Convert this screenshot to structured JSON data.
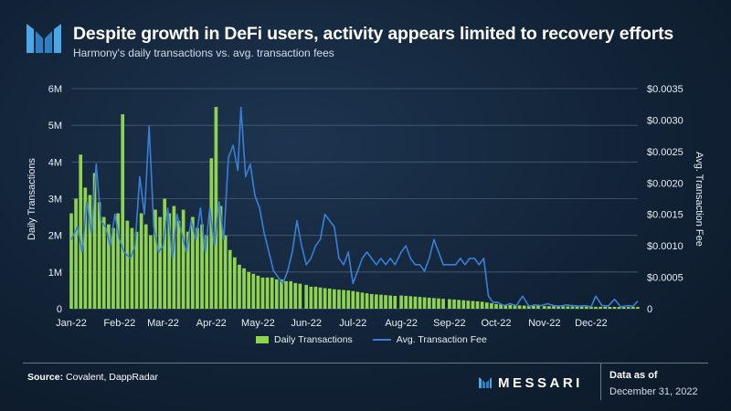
{
  "header": {
    "title": "Despite growth in DeFi users, activity appears limited to recovery efforts",
    "subtitle": "Harmony's daily transactions vs. avg. transaction fees"
  },
  "footer": {
    "source_label": "Source:",
    "source_text": "Covalent, DappRadar",
    "brand": "MESSARI",
    "data_as_of_label": "Data as of",
    "data_as_of_date": "December 31, 2022"
  },
  "colors": {
    "bars": "#8fd34f",
    "line": "#3a7fd6",
    "grid": "#4a5d72"
  },
  "chart_data": {
    "type": "bar",
    "title": "Despite growth in DeFi users, activity appears limited to recovery efforts",
    "subtitle": "Harmony's daily transactions vs. avg. transaction fees",
    "x_tick_labels": [
      "Jan-22",
      "Feb-22",
      "Mar-22",
      "Apr-22",
      "May-22",
      "Jun-22",
      "Jul-22",
      "Aug-22",
      "Sep-22",
      "Oct-22",
      "Nov-22",
      "Dec-22"
    ],
    "y_left": {
      "label": "Daily Transactions",
      "range": [
        0,
        6000000
      ],
      "tick_labels": [
        "0",
        "1M",
        "2M",
        "3M",
        "4M",
        "5M",
        "6M"
      ]
    },
    "y_right": {
      "label": "Avg. Transaction Fee",
      "range": [
        0,
        0.0035
      ],
      "tick_labels": [
        "0",
        "$0.0005",
        "$0.0010",
        "$0.0015",
        "$0.0020",
        "$0.0025",
        "$0.0030",
        "$0.0035"
      ]
    },
    "grid": true,
    "legend_position": "bottom-center",
    "series": [
      {
        "name": "Daily Transactions",
        "type": "bar",
        "axis": "left",
        "points": [
          [
            "2022-01-01",
            2600000
          ],
          [
            "2022-01-04",
            3000000
          ],
          [
            "2022-01-07",
            4200000
          ],
          [
            "2022-01-10",
            3300000
          ],
          [
            "2022-01-13",
            3100000
          ],
          [
            "2022-01-16",
            3700000
          ],
          [
            "2022-01-19",
            2900000
          ],
          [
            "2022-01-22",
            2500000
          ],
          [
            "2022-01-25",
            2300000
          ],
          [
            "2022-01-28",
            2200000
          ],
          [
            "2022-01-31",
            2600000
          ],
          [
            "2022-02-03",
            5300000
          ],
          [
            "2022-02-06",
            2400000
          ],
          [
            "2022-02-09",
            2200000
          ],
          [
            "2022-02-12",
            2100000
          ],
          [
            "2022-02-15",
            2600000
          ],
          [
            "2022-02-18",
            2300000
          ],
          [
            "2022-02-21",
            2000000
          ],
          [
            "2022-02-24",
            2700000
          ],
          [
            "2022-02-27",
            2500000
          ],
          [
            "2022-03-02",
            3000000
          ],
          [
            "2022-03-05",
            2600000
          ],
          [
            "2022-03-08",
            2800000
          ],
          [
            "2022-03-11",
            2400000
          ],
          [
            "2022-03-14",
            2700000
          ],
          [
            "2022-03-17",
            2100000
          ],
          [
            "2022-03-20",
            2500000
          ],
          [
            "2022-03-23",
            2200000
          ],
          [
            "2022-03-26",
            2300000
          ],
          [
            "2022-03-29",
            2000000
          ],
          [
            "2022-04-01",
            4100000
          ],
          [
            "2022-04-04",
            5500000
          ],
          [
            "2022-04-07",
            2800000
          ],
          [
            "2022-04-10",
            2000000
          ],
          [
            "2022-04-13",
            1600000
          ],
          [
            "2022-04-16",
            1400000
          ],
          [
            "2022-04-19",
            1200000
          ],
          [
            "2022-04-22",
            1100000
          ],
          [
            "2022-04-25",
            1000000
          ],
          [
            "2022-04-28",
            950000
          ],
          [
            "2022-05-01",
            900000
          ],
          [
            "2022-05-04",
            850000
          ],
          [
            "2022-05-07",
            850000
          ],
          [
            "2022-05-10",
            850000
          ],
          [
            "2022-05-13",
            800000
          ],
          [
            "2022-05-16",
            800000
          ],
          [
            "2022-05-19",
            750000
          ],
          [
            "2022-05-22",
            750000
          ],
          [
            "2022-05-25",
            700000
          ],
          [
            "2022-05-28",
            680000
          ],
          [
            "2022-06-01",
            650000
          ],
          [
            "2022-06-04",
            600000
          ],
          [
            "2022-06-07",
            600000
          ],
          [
            "2022-06-10",
            580000
          ],
          [
            "2022-06-13",
            560000
          ],
          [
            "2022-06-16",
            550000
          ],
          [
            "2022-06-19",
            530000
          ],
          [
            "2022-06-22",
            520000
          ],
          [
            "2022-06-25",
            510000
          ],
          [
            "2022-06-28",
            500000
          ],
          [
            "2022-07-01",
            480000
          ],
          [
            "2022-07-04",
            460000
          ],
          [
            "2022-07-07",
            440000
          ],
          [
            "2022-07-10",
            420000
          ],
          [
            "2022-07-13",
            400000
          ],
          [
            "2022-07-16",
            390000
          ],
          [
            "2022-07-19",
            380000
          ],
          [
            "2022-07-22",
            370000
          ],
          [
            "2022-07-25",
            360000
          ],
          [
            "2022-07-28",
            350000
          ],
          [
            "2022-08-01",
            360000
          ],
          [
            "2022-08-04",
            350000
          ],
          [
            "2022-08-07",
            340000
          ],
          [
            "2022-08-10",
            330000
          ],
          [
            "2022-08-13",
            320000
          ],
          [
            "2022-08-16",
            310000
          ],
          [
            "2022-08-19",
            300000
          ],
          [
            "2022-08-22",
            290000
          ],
          [
            "2022-08-25",
            280000
          ],
          [
            "2022-08-28",
            270000
          ],
          [
            "2022-09-01",
            260000
          ],
          [
            "2022-09-04",
            250000
          ],
          [
            "2022-09-07",
            240000
          ],
          [
            "2022-09-10",
            230000
          ],
          [
            "2022-09-13",
            220000
          ],
          [
            "2022-09-16",
            210000
          ],
          [
            "2022-09-19",
            200000
          ],
          [
            "2022-09-22",
            190000
          ],
          [
            "2022-09-25",
            170000
          ],
          [
            "2022-09-28",
            150000
          ],
          [
            "2022-10-01",
            130000
          ],
          [
            "2022-10-04",
            120000
          ],
          [
            "2022-10-07",
            110000
          ],
          [
            "2022-10-10",
            100000
          ],
          [
            "2022-10-13",
            95000
          ],
          [
            "2022-10-16",
            90000
          ],
          [
            "2022-10-19",
            85000
          ],
          [
            "2022-10-22",
            80000
          ],
          [
            "2022-10-25",
            78000
          ],
          [
            "2022-10-28",
            75000
          ],
          [
            "2022-11-01",
            72000
          ],
          [
            "2022-11-04",
            70000
          ],
          [
            "2022-11-07",
            68000
          ],
          [
            "2022-11-10",
            66000
          ],
          [
            "2022-11-13",
            64000
          ],
          [
            "2022-11-16",
            62000
          ],
          [
            "2022-11-19",
            60000
          ],
          [
            "2022-11-22",
            58000
          ],
          [
            "2022-11-25",
            56000
          ],
          [
            "2022-11-28",
            55000
          ],
          [
            "2022-12-01",
            54000
          ],
          [
            "2022-12-04",
            53000
          ],
          [
            "2022-12-07",
            52000
          ],
          [
            "2022-12-10",
            51000
          ],
          [
            "2022-12-13",
            50000
          ],
          [
            "2022-12-16",
            50000
          ],
          [
            "2022-12-19",
            49000
          ],
          [
            "2022-12-22",
            48000
          ],
          [
            "2022-12-25",
            48000
          ],
          [
            "2022-12-28",
            47000
          ],
          [
            "2022-12-31",
            47000
          ]
        ]
      },
      {
        "name": "Avg. Transaction Fee",
        "type": "line",
        "axis": "right",
        "points": [
          [
            "2022-01-01",
            0.0011
          ],
          [
            "2022-01-05",
            0.0013
          ],
          [
            "2022-01-08",
            0.0009
          ],
          [
            "2022-01-11",
            0.0017
          ],
          [
            "2022-01-14",
            0.0012
          ],
          [
            "2022-01-17",
            0.0023
          ],
          [
            "2022-01-20",
            0.0014
          ],
          [
            "2022-01-23",
            0.0013
          ],
          [
            "2022-01-26",
            0.001
          ],
          [
            "2022-01-29",
            0.0015
          ],
          [
            "2022-02-01",
            0.0011
          ],
          [
            "2022-02-04",
            0.0009
          ],
          [
            "2022-02-08",
            0.0008
          ],
          [
            "2022-02-11",
            0.001
          ],
          [
            "2022-02-14",
            0.0021
          ],
          [
            "2022-02-17",
            0.0015
          ],
          [
            "2022-02-20",
            0.0029
          ],
          [
            "2022-02-23",
            0.0013
          ],
          [
            "2022-02-26",
            0.0009
          ],
          [
            "2022-03-01",
            0.001
          ],
          [
            "2022-03-04",
            0.0016
          ],
          [
            "2022-03-07",
            0.0008
          ],
          [
            "2022-03-10",
            0.0015
          ],
          [
            "2022-03-13",
            0.0012
          ],
          [
            "2022-03-16",
            0.0009
          ],
          [
            "2022-03-19",
            0.0014
          ],
          [
            "2022-03-22",
            0.0011
          ],
          [
            "2022-03-25",
            0.0016
          ],
          [
            "2022-03-28",
            0.0009
          ],
          [
            "2022-03-31",
            0.0016
          ],
          [
            "2022-04-03",
            0.001
          ],
          [
            "2022-04-06",
            0.0017
          ],
          [
            "2022-04-09",
            0.0011
          ],
          [
            "2022-04-12",
            0.0024
          ],
          [
            "2022-04-15",
            0.0026
          ],
          [
            "2022-04-18",
            0.0022
          ],
          [
            "2022-04-20",
            0.0032
          ],
          [
            "2022-04-23",
            0.0021
          ],
          [
            "2022-04-26",
            0.0023
          ],
          [
            "2022-04-29",
            0.0018
          ],
          [
            "2022-05-02",
            0.0016
          ],
          [
            "2022-05-05",
            0.0012
          ],
          [
            "2022-05-08",
            0.0009
          ],
          [
            "2022-05-11",
            0.0006
          ],
          [
            "2022-05-14",
            0.0005
          ],
          [
            "2022-05-17",
            0.0004
          ],
          [
            "2022-05-20",
            0.0006
          ],
          [
            "2022-05-23",
            0.0009
          ],
          [
            "2022-05-26",
            0.0014
          ],
          [
            "2022-05-29",
            0.001
          ],
          [
            "2022-06-01",
            0.0007
          ],
          [
            "2022-06-04",
            0.0008
          ],
          [
            "2022-06-07",
            0.001
          ],
          [
            "2022-06-10",
            0.0011
          ],
          [
            "2022-06-13",
            0.0015
          ],
          [
            "2022-06-16",
            0.0014
          ],
          [
            "2022-06-19",
            0.0013
          ],
          [
            "2022-06-22",
            0.0008
          ],
          [
            "2022-06-25",
            0.0007
          ],
          [
            "2022-06-28",
            0.0009
          ],
          [
            "2022-07-01",
            0.0004
          ],
          [
            "2022-07-04",
            0.0006
          ],
          [
            "2022-07-07",
            0.0008
          ],
          [
            "2022-07-10",
            0.0009
          ],
          [
            "2022-07-13",
            0.0008
          ],
          [
            "2022-07-16",
            0.0007
          ],
          [
            "2022-07-19",
            0.0008
          ],
          [
            "2022-07-22",
            0.0007
          ],
          [
            "2022-07-25",
            0.0008
          ],
          [
            "2022-07-28",
            0.0007
          ],
          [
            "2022-08-01",
            0.0009
          ],
          [
            "2022-08-04",
            0.001
          ],
          [
            "2022-08-07",
            0.0008
          ],
          [
            "2022-08-10",
            0.0007
          ],
          [
            "2022-08-13",
            0.0007
          ],
          [
            "2022-08-16",
            0.0006
          ],
          [
            "2022-08-19",
            0.0008
          ],
          [
            "2022-08-22",
            0.0011
          ],
          [
            "2022-08-25",
            0.0009
          ],
          [
            "2022-08-28",
            0.0007
          ],
          [
            "2022-09-01",
            0.0007
          ],
          [
            "2022-09-05",
            0.0007
          ],
          [
            "2022-09-08",
            0.0008
          ],
          [
            "2022-09-11",
            0.0007
          ],
          [
            "2022-09-14",
            0.0008
          ],
          [
            "2022-09-17",
            0.0008
          ],
          [
            "2022-09-20",
            0.0007
          ],
          [
            "2022-09-23",
            0.0008
          ],
          [
            "2022-09-26",
            0.0002
          ],
          [
            "2022-09-29",
            0.0001
          ],
          [
            "2022-10-02",
            0.0001
          ],
          [
            "2022-10-06",
            5e-05
          ],
          [
            "2022-10-10",
            8e-05
          ],
          [
            "2022-10-14",
            5e-05
          ],
          [
            "2022-10-18",
            0.0002
          ],
          [
            "2022-10-22",
            4e-05
          ],
          [
            "2022-10-26",
            6e-05
          ],
          [
            "2022-10-30",
            5e-05
          ],
          [
            "2022-11-03",
            8e-05
          ],
          [
            "2022-11-07",
            5e-05
          ],
          [
            "2022-11-11",
            4e-05
          ],
          [
            "2022-11-15",
            6e-05
          ],
          [
            "2022-11-19",
            5e-05
          ],
          [
            "2022-11-23",
            4e-05
          ],
          [
            "2022-11-27",
            5e-05
          ],
          [
            "2022-12-01",
            3e-05
          ],
          [
            "2022-12-04",
            0.0002
          ],
          [
            "2022-12-08",
            5e-05
          ],
          [
            "2022-12-12",
            4e-05
          ],
          [
            "2022-12-16",
            0.00015
          ],
          [
            "2022-12-20",
            3e-05
          ],
          [
            "2022-12-24",
            5e-05
          ],
          [
            "2022-12-28",
            4e-05
          ],
          [
            "2022-12-31",
            0.00012
          ]
        ]
      }
    ]
  }
}
